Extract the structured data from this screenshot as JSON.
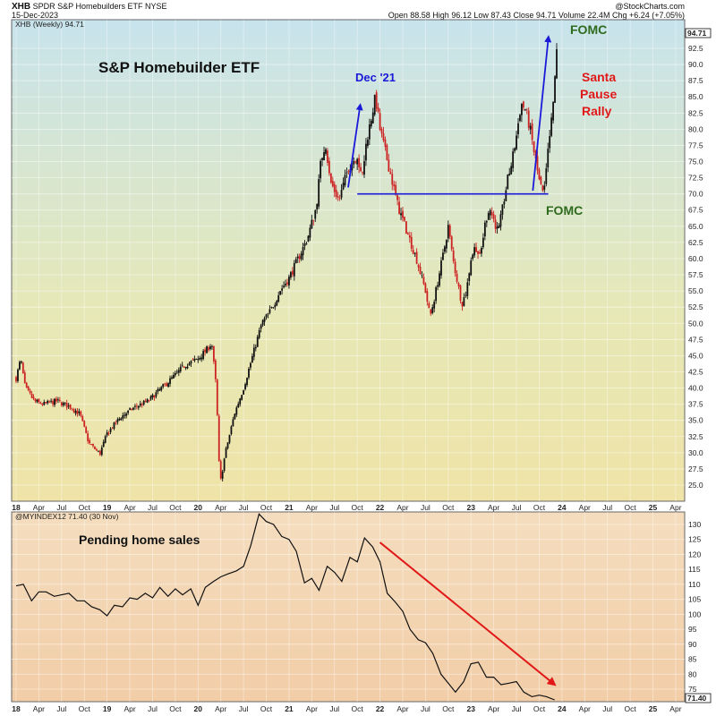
{
  "header": {
    "symbol": "XHB",
    "name": "SPDR S&P Homebuilders ETF",
    "exchange": "NYSE",
    "date": "15-Dec-2023",
    "watermark": "@StockCharts.com",
    "ohlc": "Open 88.58  High 96.12  Low 87.43  Close 94.71  Volume 22.4M  Chg +6.24 (+7.05%)"
  },
  "chart_data": [
    {
      "type": "candlestick",
      "legend": "XHB (Weekly) 94.71",
      "title": "S&P Homebuilder ETF",
      "last_value_label": "94.71",
      "ylim": [
        23,
        96
      ],
      "y_ticks": [
        "92.5",
        "90.0",
        "87.5",
        "85.0",
        "82.5",
        "80.0",
        "77.5",
        "75.0",
        "72.5",
        "70.0",
        "67.5",
        "65.0",
        "62.5",
        "60.0",
        "57.5",
        "55.0",
        "52.5",
        "50.0",
        "47.5",
        "45.0",
        "42.5",
        "40.0",
        "37.5",
        "35.0",
        "32.5",
        "30.0",
        "27.5",
        "25.0"
      ],
      "x_ticks": [
        "18",
        "Apr",
        "Jul",
        "Oct",
        "19",
        "Apr",
        "Jul",
        "Oct",
        "20",
        "Apr",
        "Jul",
        "Oct",
        "21",
        "Apr",
        "Jul",
        "Oct",
        "22",
        "Apr",
        "Jul",
        "Oct",
        "23",
        "Apr",
        "Jul",
        "Oct",
        "24",
        "Apr",
        "Jul",
        "Oct",
        "25",
        "Apr"
      ],
      "price_path": [
        [
          2018.0,
          41.5
        ],
        [
          2018.05,
          44.5
        ],
        [
          2018.1,
          40
        ],
        [
          2018.2,
          38
        ],
        [
          2018.3,
          37.5
        ],
        [
          2018.45,
          38
        ],
        [
          2018.6,
          37
        ],
        [
          2018.7,
          36
        ],
        [
          2018.8,
          31.5
        ],
        [
          2018.92,
          29.8
        ],
        [
          2019.0,
          33
        ],
        [
          2019.15,
          35.5
        ],
        [
          2019.3,
          37
        ],
        [
          2019.45,
          38
        ],
        [
          2019.6,
          40
        ],
        [
          2019.75,
          42
        ],
        [
          2019.85,
          43.5
        ],
        [
          2020.0,
          44.5
        ],
        [
          2020.1,
          46
        ],
        [
          2020.15,
          47
        ],
        [
          2020.2,
          40
        ],
        [
          2020.24,
          25
        ],
        [
          2020.3,
          30
        ],
        [
          2020.4,
          36
        ],
        [
          2020.5,
          40
        ],
        [
          2020.6,
          45
        ],
        [
          2020.7,
          50
        ],
        [
          2020.8,
          52
        ],
        [
          2020.9,
          55
        ],
        [
          2021.0,
          57
        ],
        [
          2021.1,
          60
        ],
        [
          2021.2,
          63
        ],
        [
          2021.3,
          68
        ],
        [
          2021.35,
          75
        ],
        [
          2021.4,
          78
        ],
        [
          2021.45,
          72
        ],
        [
          2021.55,
          69
        ],
        [
          2021.65,
          74
        ],
        [
          2021.75,
          76
        ],
        [
          2021.8,
          72
        ],
        [
          2021.85,
          78
        ],
        [
          2021.95,
          85
        ],
        [
          2022.0,
          80
        ],
        [
          2022.1,
          74
        ],
        [
          2022.2,
          68
        ],
        [
          2022.3,
          64
        ],
        [
          2022.4,
          60
        ],
        [
          2022.5,
          55
        ],
        [
          2022.55,
          51
        ],
        [
          2022.6,
          54
        ],
        [
          2022.7,
          61
        ],
        [
          2022.75,
          65
        ],
        [
          2022.8,
          60
        ],
        [
          2022.9,
          53
        ],
        [
          2022.95,
          55
        ],
        [
          2023.0,
          60
        ],
        [
          2023.05,
          62
        ],
        [
          2023.1,
          60
        ],
        [
          2023.15,
          65
        ],
        [
          2023.2,
          68
        ],
        [
          2023.25,
          66
        ],
        [
          2023.3,
          64
        ],
        [
          2023.35,
          68
        ],
        [
          2023.4,
          72
        ],
        [
          2023.45,
          75
        ],
        [
          2023.5,
          79
        ],
        [
          2023.55,
          84
        ],
        [
          2023.6,
          83
        ],
        [
          2023.65,
          80
        ],
        [
          2023.7,
          76
        ],
        [
          2023.75,
          72
        ],
        [
          2023.8,
          69.5
        ],
        [
          2023.85,
          77
        ],
        [
          2023.9,
          83
        ],
        [
          2023.92,
          88
        ],
        [
          2023.96,
          94.7
        ]
      ],
      "horizontal_line": {
        "value": 70,
        "x_start": 2021.75,
        "x_end": 2023.85
      },
      "arrows": [
        {
          "from": [
            2021.65,
            71
          ],
          "to": [
            2021.78,
            83.5
          ],
          "color": "#1a1ad8"
        },
        {
          "from": [
            2023.68,
            70.5
          ],
          "to": [
            2023.85,
            94
          ],
          "color": "#1a1ad8"
        }
      ],
      "annotations": [
        {
          "text": "Dec '21",
          "color": "#1a1ad8"
        },
        {
          "text": "FOMC",
          "color": "#2e6b1e"
        },
        {
          "text": "FOMC",
          "color": "#2e6b1e"
        },
        {
          "text": "Santa",
          "color": "#e01818"
        },
        {
          "text": "Pause",
          "color": "#e01818"
        },
        {
          "text": "Rally",
          "color": "#e01818"
        }
      ],
      "colors": {
        "up": "#111111",
        "down": "#cc2222",
        "hline": "#1a1ad8"
      }
    },
    {
      "type": "line",
      "legend": "@MYINDEX12 71.40 (30 Nov)",
      "title": "Pending home sales",
      "last_value_label": "71.40",
      "ylim": [
        72,
        133
      ],
      "y_ticks": [
        "130",
        "125",
        "120",
        "115",
        "110",
        "105",
        "100",
        "95",
        "90",
        "85",
        "80",
        "75"
      ],
      "x_ticks": [
        "18",
        "Apr",
        "Jul",
        "Oct",
        "19",
        "Apr",
        "Jul",
        "Oct",
        "20",
        "Apr",
        "Jul",
        "Oct",
        "21",
        "Apr",
        "Jul",
        "Oct",
        "22",
        "Apr",
        "Jul",
        "Oct",
        "23",
        "Apr",
        "Jul",
        "Oct",
        "24",
        "Apr",
        "Jul",
        "Oct",
        "25",
        "Apr"
      ],
      "x": [
        2018.0,
        2018.08,
        2018.17,
        2018.25,
        2018.33,
        2018.42,
        2018.5,
        2018.58,
        2018.67,
        2018.75,
        2018.83,
        2018.92,
        2019.0,
        2019.08,
        2019.17,
        2019.25,
        2019.33,
        2019.42,
        2019.5,
        2019.58,
        2019.67,
        2019.75,
        2019.83,
        2019.92,
        2020.0,
        2020.08,
        2020.17,
        2020.25,
        2020.33,
        2020.42,
        2020.5,
        2020.58,
        2020.67,
        2020.75,
        2020.83,
        2020.92,
        2021.0,
        2021.08,
        2021.17,
        2021.25,
        2021.33,
        2021.42,
        2021.5,
        2021.58,
        2021.67,
        2021.75,
        2021.83,
        2021.92,
        2022.0,
        2022.08,
        2022.17,
        2022.25,
        2022.33,
        2022.42,
        2022.5,
        2022.58,
        2022.67,
        2022.75,
        2022.83,
        2022.92,
        2023.0,
        2023.08,
        2023.17,
        2023.25,
        2023.33,
        2023.42,
        2023.5,
        2023.58,
        2023.67,
        2023.75,
        2023.83,
        2023.92
      ],
      "values": [
        109.5,
        110,
        104.5,
        107.5,
        107.5,
        106,
        106.5,
        107,
        104.5,
        104.5,
        102.5,
        101.5,
        99.5,
        103,
        102.5,
        105.5,
        105,
        107,
        105.5,
        109,
        106,
        108.5,
        106.5,
        108.5,
        103,
        109,
        111,
        112.5,
        113.5,
        114.5,
        116,
        123,
        133.5,
        131,
        130,
        126,
        125,
        121,
        110.5,
        112,
        108,
        116,
        114,
        111,
        119,
        117.5,
        125.5,
        122.5,
        117.5,
        107,
        104,
        101,
        95,
        91.5,
        90.5,
        87,
        80,
        77,
        74,
        77.5,
        83.5,
        84,
        79,
        79,
        76.5,
        77,
        77.5,
        74,
        72.5,
        73,
        72.5,
        71.4
      ],
      "trend_arrow": {
        "from": [
          2022.0,
          124
        ],
        "to": [
          2023.9,
          77
        ],
        "color": "#e01818"
      },
      "colors": {
        "line": "#111111"
      }
    }
  ]
}
